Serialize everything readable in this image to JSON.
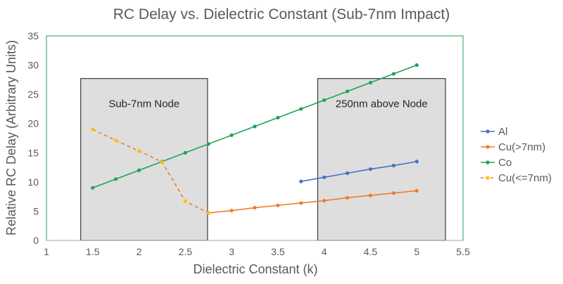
{
  "chart_data": {
    "type": "line",
    "title": "RC Delay vs. Dielectric Constant (Sub-7nm Impact)",
    "xlabel": "Dielectric Constant (k)",
    "ylabel": "Relative RC Delay (Arbitrary Units)",
    "xlim": [
      1,
      5.5
    ],
    "ylim": [
      0,
      35
    ],
    "xticks": [
      "1",
      "1.5",
      "2",
      "2.5",
      "3",
      "3.5",
      "4",
      "4.5",
      "5",
      "5.5"
    ],
    "yticks": [
      "0",
      "5",
      "10",
      "15",
      "20",
      "25",
      "30",
      "35"
    ],
    "grid": false,
    "legend_position": "right",
    "annotations": [
      {
        "label": "Sub-7nm Node",
        "x_range": [
          1.37,
          2.74
        ],
        "y_range": [
          0,
          27.7
        ]
      },
      {
        "label": "250nm above Node",
        "x_range": [
          3.93,
          5.31
        ],
        "y_range": [
          0,
          27.7
        ]
      }
    ],
    "series": [
      {
        "name": "Al",
        "color": "#4472c4",
        "dashed": false,
        "x": [
          3.75,
          4.0,
          4.25,
          4.5,
          4.75,
          5.0
        ],
        "values": [
          10.1,
          10.8,
          11.5,
          12.2,
          12.8,
          13.5
        ]
      },
      {
        "name": "Cu(>7nm)",
        "color": "#ed7d31",
        "dashed": false,
        "x": [
          2.75,
          3.0,
          3.25,
          3.5,
          3.75,
          4.0,
          4.25,
          4.5,
          4.75,
          5.0
        ],
        "values": [
          4.7,
          5.1,
          5.6,
          6.0,
          6.4,
          6.8,
          7.3,
          7.7,
          8.1,
          8.5
        ]
      },
      {
        "name": "Co",
        "color": "#1ea35a",
        "dashed": false,
        "x": [
          1.5,
          1.75,
          2.0,
          2.25,
          2.5,
          2.75,
          3.0,
          3.25,
          3.5,
          3.75,
          4.0,
          4.25,
          4.5,
          4.75,
          5.0
        ],
        "values": [
          9.0,
          10.5,
          12.0,
          13.5,
          15.0,
          16.5,
          18.0,
          19.5,
          21.0,
          22.5,
          24.0,
          25.5,
          27.0,
          28.5,
          30.0
        ]
      },
      {
        "name": "Cu(<=7nm)",
        "color": "#ed7d31",
        "marker_color": "#ffc000",
        "dashed": true,
        "x": [
          1.5,
          1.75,
          2.0,
          2.25,
          2.5,
          2.75
        ],
        "values": [
          19.0,
          17.1,
          15.3,
          13.4,
          6.7,
          4.7
        ]
      }
    ]
  }
}
